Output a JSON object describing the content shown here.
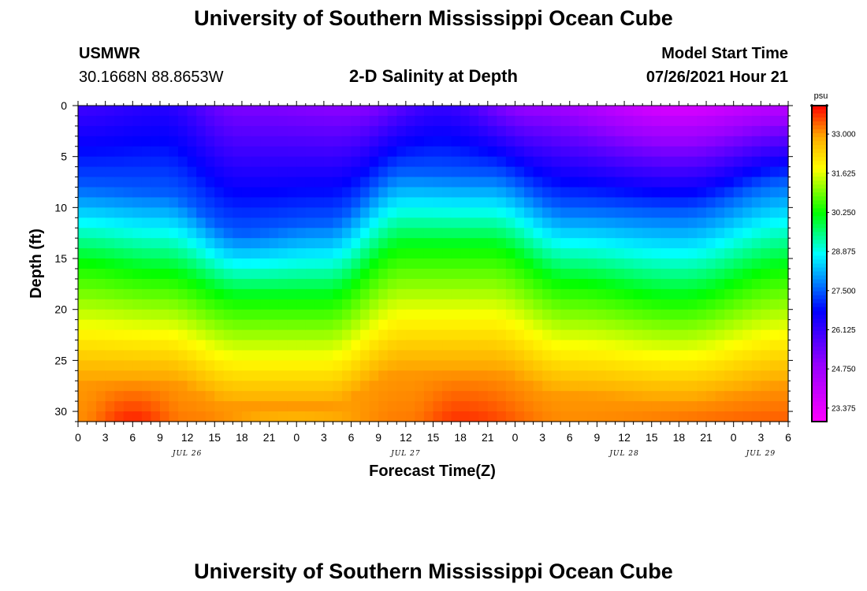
{
  "top_title": "University of Southern Mississippi Ocean Cube",
  "bottom_title": "University of Southern Mississippi Ocean Cube",
  "station": {
    "name": "USMWR",
    "coords": "30.1668N  88.8653W"
  },
  "model": {
    "label": "Model Start Time",
    "time": "07/26/2021 Hour 21"
  },
  "colors": {
    "frame": "#000000",
    "background": "#ffffff"
  },
  "chart_data": {
    "type": "heatmap",
    "title": "2-D Salinity at Depth",
    "xlabel": "Forecast Time(Z)",
    "ylabel": "Depth (ft)",
    "x_hours_range": [
      0,
      78
    ],
    "ylim": [
      0,
      31
    ],
    "x_tick_labels": [
      "0",
      "3",
      "6",
      "9",
      "12",
      "15",
      "18",
      "21",
      "0",
      "3",
      "6",
      "9",
      "12",
      "15",
      "18",
      "21",
      "0",
      "3",
      "6",
      "9",
      "12",
      "15",
      "18",
      "21",
      "0",
      "3",
      "6"
    ],
    "y_ticks": [
      0,
      5,
      10,
      15,
      20,
      25,
      30
    ],
    "y_tick_labels": [
      "0",
      "5",
      "10",
      "15",
      "20",
      "25",
      "30"
    ],
    "date_labels": [
      {
        "label": "JUL 26",
        "hour": 12
      },
      {
        "label": "JUL 27",
        "hour": 36
      },
      {
        "label": "JUL 28",
        "hour": 60
      },
      {
        "label": "JUL 29",
        "hour": 75
      }
    ],
    "colorbar": {
      "unit": "psu",
      "min": 22.9,
      "max": 34.0,
      "tick_values": [
        33.0,
        31.625,
        30.25,
        28.875,
        27.5,
        26.125,
        24.75,
        23.375
      ],
      "tick_labels": [
        "33.000",
        "31.625",
        "30.250",
        "28.875",
        "27.500",
        "26.125",
        "24.750",
        "23.375"
      ]
    },
    "surface_salinity_psu": [
      {
        "hour": 0,
        "value": 26.0
      },
      {
        "hour": 9,
        "value": 26.3
      },
      {
        "hour": 18,
        "value": 25.2
      },
      {
        "hour": 30,
        "value": 25.0
      },
      {
        "hour": 40,
        "value": 26.1
      },
      {
        "hour": 50,
        "value": 24.8
      },
      {
        "hour": 66,
        "value": 23.6
      },
      {
        "hour": 78,
        "value": 24.2
      }
    ],
    "bottom_salinity_psu": [
      {
        "hour": 0,
        "value": 33.1
      },
      {
        "hour": 6,
        "value": 33.8
      },
      {
        "hour": 12,
        "value": 33.2
      },
      {
        "hour": 24,
        "value": 32.7
      },
      {
        "hour": 36,
        "value": 33.2
      },
      {
        "hour": 42,
        "value": 33.7
      },
      {
        "hour": 54,
        "value": 33.1
      },
      {
        "hour": 78,
        "value": 33.4
      }
    ],
    "isohaline_27_5_depth_ft": [
      {
        "hour": 0,
        "value": 8.0
      },
      {
        "hour": 9,
        "value": 8.5
      },
      {
        "hour": 18,
        "value": 12.5
      },
      {
        "hour": 27,
        "value": 11.5
      },
      {
        "hour": 36,
        "value": 6.5
      },
      {
        "hour": 45,
        "value": 6.8
      },
      {
        "hour": 54,
        "value": 10.0
      },
      {
        "hour": 66,
        "value": 10.5
      },
      {
        "hour": 78,
        "value": 7.5
      }
    ],
    "isohaline_30_25_depth_ft": [
      {
        "hour": 0,
        "value": 15.5
      },
      {
        "hour": 9,
        "value": 16.5
      },
      {
        "hour": 18,
        "value": 19.0
      },
      {
        "hour": 27,
        "value": 19.0
      },
      {
        "hour": 36,
        "value": 14.0
      },
      {
        "hour": 45,
        "value": 14.0
      },
      {
        "hour": 54,
        "value": 17.5
      },
      {
        "hour": 66,
        "value": 19.0
      },
      {
        "hour": 78,
        "value": 16.0
      }
    ],
    "isohaline_33_depth_ft": [
      {
        "hour": 0,
        "value": 27.0
      },
      {
        "hour": 9,
        "value": 27.0
      },
      {
        "hour": 18,
        "value": 29.5
      },
      {
        "hour": 27,
        "value": 29.5
      },
      {
        "hour": 36,
        "value": 26.0
      },
      {
        "hour": 45,
        "value": 26.0
      },
      {
        "hour": 54,
        "value": 28.5
      },
      {
        "hour": 66,
        "value": 29.0
      },
      {
        "hour": 78,
        "value": 27.5
      }
    ]
  }
}
